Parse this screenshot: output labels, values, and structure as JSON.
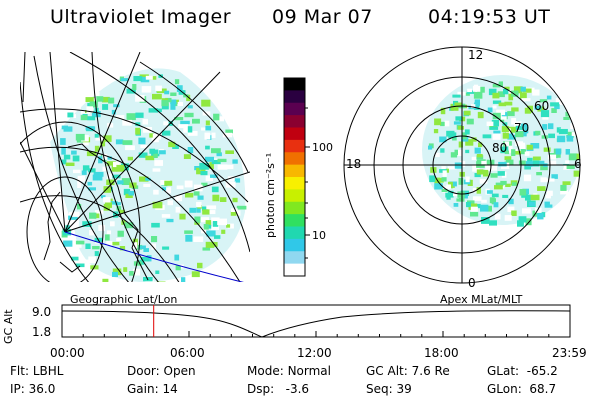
{
  "header": {
    "instrument": "Ultraviolet Imager",
    "date": "09 Mar 07",
    "time": "04:19:53 UT"
  },
  "colorbar": {
    "label": "photon cm⁻²s⁻¹",
    "ticks": [
      "100",
      "10"
    ],
    "colors": [
      "#000000",
      "#2a0040",
      "#5a0050",
      "#8a0030",
      "#c00010",
      "#e83010",
      "#f07000",
      "#f8b800",
      "#f8f000",
      "#c8f000",
      "#80e820",
      "#30e060",
      "#20d8b0",
      "#30c8e8",
      "#90d8f0",
      "#ffffff"
    ]
  },
  "geo_map": {
    "label": "Geographic Lat/Lon",
    "aurora_colors": [
      "#30e0c0",
      "#40d8e0",
      "#60e890",
      "#90e840"
    ]
  },
  "polar_plot": {
    "label": "Apex MLat/MLT",
    "mlt_labels": {
      "top": "12",
      "bottom": "0",
      "left": "18",
      "right": "6"
    },
    "lat_labels": [
      "60",
      "70",
      "80"
    ]
  },
  "alt_plot": {
    "ylabel": "GC Alt",
    "yticks": [
      "9.0",
      "1.8"
    ],
    "xticks": [
      "00:00",
      "06:00",
      "12:00",
      "18:00",
      "23:59"
    ],
    "current_time_marker_hours": 4.33
  },
  "info": {
    "filter_label": "Flt:",
    "filter": "LBHL",
    "ip_label": "IP:",
    "ip": "36.0",
    "door_label": "Door:",
    "door": "Open",
    "gain_label": "Gain:",
    "gain": "14",
    "mode_label": "Mode:",
    "mode": "Normal",
    "dsp_label": "Dsp:",
    "dsp": "-3.6",
    "gcalt_label": "GC Alt:",
    "gcalt": "7.6 Re",
    "seq_label": "Seq:",
    "seq": "39",
    "glat_label": "GLat:",
    "glat": "-65.2",
    "glon_label": "GLon:",
    "glon": "68.7"
  }
}
